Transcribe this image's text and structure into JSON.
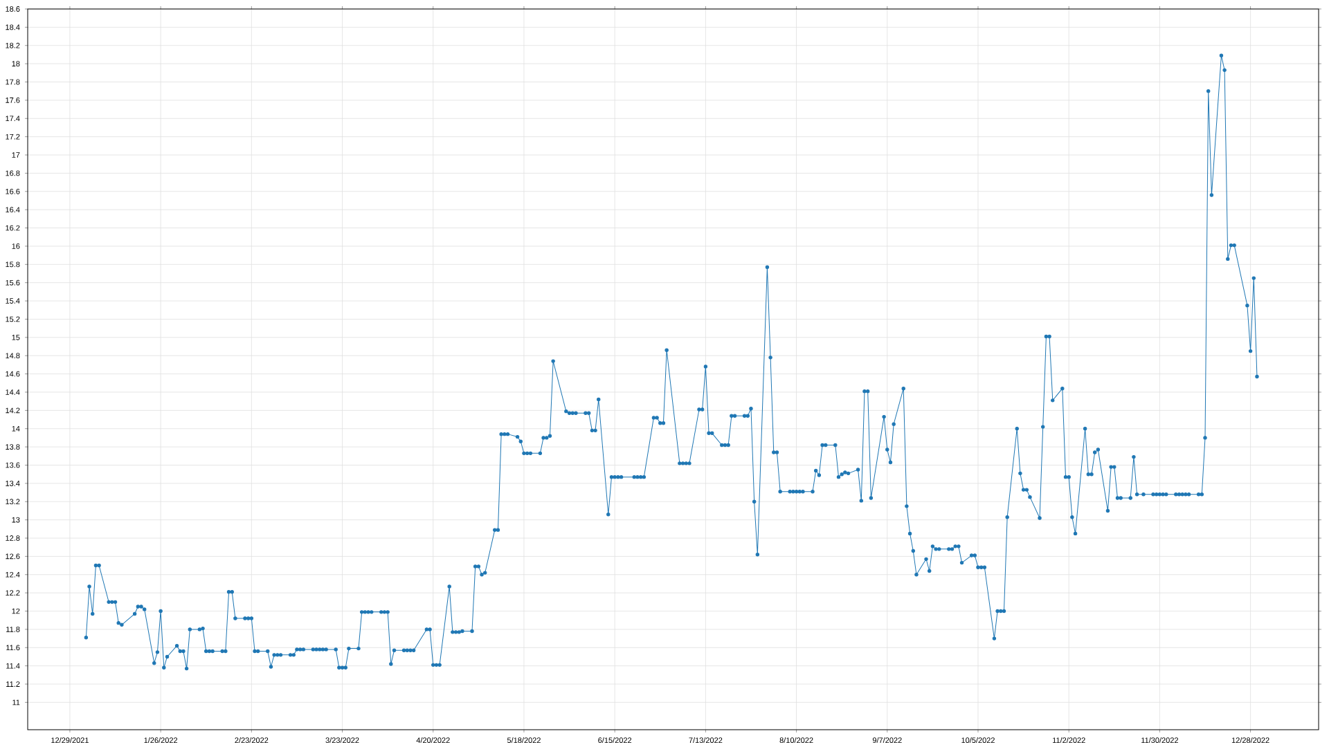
{
  "chart_data": {
    "type": "line",
    "color": "#1f77b4",
    "marker": "circle",
    "grid": true,
    "xlim": [
      "2021-12-16",
      "2023-01-18"
    ],
    "ylim": [
      10.7,
      18.6
    ],
    "xticks": [
      {
        "value": "2021-12-29",
        "label": "12/29/2021"
      },
      {
        "value": "2022-01-26",
        "label": "1/26/2022"
      },
      {
        "value": "2022-02-23",
        "label": "2/23/2022"
      },
      {
        "value": "2022-03-23",
        "label": "3/23/2022"
      },
      {
        "value": "2022-04-20",
        "label": "4/20/2022"
      },
      {
        "value": "2022-05-18",
        "label": "5/18/2022"
      },
      {
        "value": "2022-06-15",
        "label": "6/15/2022"
      },
      {
        "value": "2022-07-13",
        "label": "7/13/2022"
      },
      {
        "value": "2022-08-10",
        "label": "8/10/2022"
      },
      {
        "value": "2022-09-07",
        "label": "9/7/2022"
      },
      {
        "value": "2022-10-05",
        "label": "10/5/2022"
      },
      {
        "value": "2022-11-02",
        "label": "11/2/2022"
      },
      {
        "value": "2022-11-30",
        "label": "11/30/2022"
      },
      {
        "value": "2022-12-28",
        "label": "12/28/2022"
      }
    ],
    "yticks": [
      11,
      11.2,
      11.4,
      11.6,
      11.8,
      12,
      12.2,
      12.4,
      12.6,
      12.8,
      13,
      13.2,
      13.4,
      13.6,
      13.8,
      14,
      14.2,
      14.4,
      14.6,
      14.8,
      15,
      15.2,
      15.4,
      15.6,
      15.8,
      16,
      16.2,
      16.4,
      16.6,
      16.8,
      17,
      17.2,
      17.4,
      17.6,
      17.8,
      18,
      18.2,
      18.4,
      18.6
    ],
    "x": [
      "2022-01-03",
      "2022-01-04",
      "2022-01-05",
      "2022-01-06",
      "2022-01-07",
      "2022-01-10",
      "2022-01-11",
      "2022-01-12",
      "2022-01-13",
      "2022-01-14",
      "2022-01-18",
      "2022-01-19",
      "2022-01-20",
      "2022-01-21",
      "2022-01-24",
      "2022-01-25",
      "2022-01-26",
      "2022-01-27",
      "2022-01-28",
      "2022-01-31",
      "2022-02-01",
      "2022-02-02",
      "2022-02-03",
      "2022-02-04",
      "2022-02-07",
      "2022-02-08",
      "2022-02-09",
      "2022-02-10",
      "2022-02-11",
      "2022-02-14",
      "2022-02-15",
      "2022-02-16",
      "2022-02-17",
      "2022-02-18",
      "2022-02-21",
      "2022-02-22",
      "2022-02-23",
      "2022-02-24",
      "2022-02-25",
      "2022-02-28",
      "2022-03-01",
      "2022-03-02",
      "2022-03-03",
      "2022-03-04",
      "2022-03-07",
      "2022-03-08",
      "2022-03-09",
      "2022-03-10",
      "2022-03-11",
      "2022-03-14",
      "2022-03-15",
      "2022-03-16",
      "2022-03-17",
      "2022-03-18",
      "2022-03-21",
      "2022-03-22",
      "2022-03-23",
      "2022-03-24",
      "2022-03-25",
      "2022-03-28",
      "2022-03-29",
      "2022-03-30",
      "2022-03-31",
      "2022-04-01",
      "2022-04-04",
      "2022-04-05",
      "2022-04-06",
      "2022-04-07",
      "2022-04-08",
      "2022-04-11",
      "2022-04-12",
      "2022-04-13",
      "2022-04-14",
      "2022-04-18",
      "2022-04-19",
      "2022-04-20",
      "2022-04-21",
      "2022-04-22",
      "2022-04-25",
      "2022-04-26",
      "2022-04-27",
      "2022-04-28",
      "2022-04-29",
      "2022-05-02",
      "2022-05-03",
      "2022-05-04",
      "2022-05-05",
      "2022-05-06",
      "2022-05-09",
      "2022-05-10",
      "2022-05-11",
      "2022-05-12",
      "2022-05-13",
      "2022-05-16",
      "2022-05-17",
      "2022-05-18",
      "2022-05-19",
      "2022-05-20",
      "2022-05-23",
      "2022-05-24",
      "2022-05-25",
      "2022-05-26",
      "2022-05-27",
      "2022-05-31",
      "2022-06-01",
      "2022-06-02",
      "2022-06-03",
      "2022-06-06",
      "2022-06-07",
      "2022-06-08",
      "2022-06-09",
      "2022-06-10",
      "2022-06-13",
      "2022-06-14",
      "2022-06-15",
      "2022-06-16",
      "2022-06-17",
      "2022-06-21",
      "2022-06-22",
      "2022-06-23",
      "2022-06-24",
      "2022-06-27",
      "2022-06-28",
      "2022-06-29",
      "2022-06-30",
      "2022-07-01",
      "2022-07-05",
      "2022-07-06",
      "2022-07-07",
      "2022-07-08",
      "2022-07-11",
      "2022-07-12",
      "2022-07-13",
      "2022-07-14",
      "2022-07-15",
      "2022-07-18",
      "2022-07-19",
      "2022-07-20",
      "2022-07-21",
      "2022-07-22",
      "2022-07-25",
      "2022-07-26",
      "2022-07-27",
      "2022-07-28",
      "2022-07-29",
      "2022-08-01",
      "2022-08-02",
      "2022-08-03",
      "2022-08-04",
      "2022-08-05",
      "2022-08-08",
      "2022-08-09",
      "2022-08-10",
      "2022-08-11",
      "2022-08-12",
      "2022-08-15",
      "2022-08-16",
      "2022-08-17",
      "2022-08-18",
      "2022-08-19",
      "2022-08-22",
      "2022-08-23",
      "2022-08-24",
      "2022-08-25",
      "2022-08-26",
      "2022-08-29",
      "2022-08-30",
      "2022-08-31",
      "2022-09-01",
      "2022-09-02",
      "2022-09-06",
      "2022-09-07",
      "2022-09-08",
      "2022-09-09",
      "2022-09-12",
      "2022-09-13",
      "2022-09-14",
      "2022-09-15",
      "2022-09-16",
      "2022-09-19",
      "2022-09-20",
      "2022-09-21",
      "2022-09-22",
      "2022-09-23",
      "2022-09-26",
      "2022-09-27",
      "2022-09-28",
      "2022-09-29",
      "2022-09-30",
      "2022-10-03",
      "2022-10-04",
      "2022-10-05",
      "2022-10-06",
      "2022-10-07",
      "2022-10-10",
      "2022-10-11",
      "2022-10-12",
      "2022-10-13",
      "2022-10-14",
      "2022-10-17",
      "2022-10-18",
      "2022-10-19",
      "2022-10-20",
      "2022-10-21",
      "2022-10-24",
      "2022-10-25",
      "2022-10-26",
      "2022-10-27",
      "2022-10-28",
      "2022-10-31",
      "2022-11-01",
      "2022-11-02",
      "2022-11-03",
      "2022-11-04",
      "2022-11-07",
      "2022-11-08",
      "2022-11-09",
      "2022-11-10",
      "2022-11-11",
      "2022-11-14",
      "2022-11-15",
      "2022-11-16",
      "2022-11-17",
      "2022-11-18",
      "2022-11-21",
      "2022-11-22",
      "2022-11-23",
      "2022-11-25",
      "2022-11-28",
      "2022-11-29",
      "2022-11-30",
      "2022-12-01",
      "2022-12-02",
      "2022-12-05",
      "2022-12-06",
      "2022-12-07",
      "2022-12-08",
      "2022-12-09",
      "2022-12-12",
      "2022-12-13",
      "2022-12-14",
      "2022-12-15",
      "2022-12-16",
      "2022-12-19",
      "2022-12-20",
      "2022-12-21",
      "2022-12-22",
      "2022-12-23",
      "2022-12-27",
      "2022-12-28",
      "2022-12-29",
      "2022-12-30"
    ],
    "values": [
      11.71,
      12.27,
      11.97,
      12.5,
      12.5,
      12.1,
      12.1,
      12.1,
      11.87,
      11.85,
      11.97,
      12.05,
      12.05,
      12.02,
      11.43,
      11.55,
      12.0,
      11.38,
      11.5,
      11.62,
      11.56,
      11.56,
      11.37,
      11.8,
      11.8,
      11.81,
      11.56,
      11.56,
      11.56,
      11.56,
      11.56,
      12.21,
      12.21,
      11.92,
      11.92,
      11.92,
      11.92,
      11.56,
      11.56,
      11.56,
      11.39,
      11.52,
      11.52,
      11.52,
      11.52,
      11.52,
      11.58,
      11.58,
      11.58,
      11.58,
      11.58,
      11.58,
      11.58,
      11.58,
      11.58,
      11.38,
      11.38,
      11.38,
      11.59,
      11.59,
      11.99,
      11.99,
      11.99,
      11.99,
      11.99,
      11.99,
      11.99,
      11.42,
      11.57,
      11.57,
      11.57,
      11.57,
      11.57,
      11.8,
      11.8,
      11.41,
      11.41,
      11.41,
      12.27,
      11.77,
      11.77,
      11.77,
      11.78,
      11.78,
      12.49,
      12.49,
      12.4,
      12.42,
      12.89,
      12.89,
      13.94,
      13.94,
      13.94,
      13.91,
      13.86,
      13.73,
      13.73,
      13.73,
      13.73,
      13.9,
      13.9,
      13.92,
      14.74,
      14.19,
      14.17,
      14.17,
      14.17,
      14.17,
      14.17,
      13.98,
      13.98,
      14.32,
      13.06,
      13.47,
      13.47,
      13.47,
      13.47,
      13.47,
      13.47,
      13.47,
      13.47,
      14.12,
      14.12,
      14.06,
      14.06,
      14.86,
      13.62,
      13.62,
      13.62,
      13.62,
      14.21,
      14.21,
      14.68,
      13.95,
      13.95,
      13.82,
      13.82,
      13.82,
      14.14,
      14.14,
      14.14,
      14.14,
      14.22,
      13.2,
      12.62,
      15.77,
      14.78,
      13.74,
      13.74,
      13.31,
      13.31,
      13.31,
      13.31,
      13.31,
      13.31,
      13.31,
      13.54,
      13.49,
      13.82,
      13.82,
      13.82,
      13.47,
      13.5,
      13.52,
      13.51,
      13.55,
      13.21,
      14.41,
      14.41,
      13.24,
      14.13,
      13.77,
      13.63,
      14.05,
      14.44,
      13.15,
      12.85,
      12.66,
      12.4,
      12.57,
      12.44,
      12.71,
      12.68,
      12.68,
      12.68,
      12.68,
      12.71,
      12.71,
      12.53,
      12.61,
      12.61,
      12.48,
      12.48,
      12.48,
      11.7,
      12.0,
      12.0,
      12.0,
      13.03,
      14.0,
      13.51,
      13.33,
      13.33,
      13.25,
      13.02,
      14.02,
      15.01,
      15.01,
      14.31,
      14.44,
      13.47,
      13.47,
      13.03,
      12.85,
      14.0,
      13.5,
      13.5,
      13.74,
      13.77,
      13.1,
      13.58,
      13.58,
      13.24,
      13.24,
      13.24,
      13.69,
      13.28,
      13.28,
      13.28,
      13.28,
      13.28,
      13.28,
      13.28,
      13.28,
      13.28,
      13.28,
      13.28,
      13.28,
      13.28,
      13.28,
      13.9,
      17.7,
      16.56,
      18.09,
      17.93,
      15.86,
      16.01,
      16.01,
      15.35,
      14.85,
      15.65,
      14.57
    ]
  }
}
